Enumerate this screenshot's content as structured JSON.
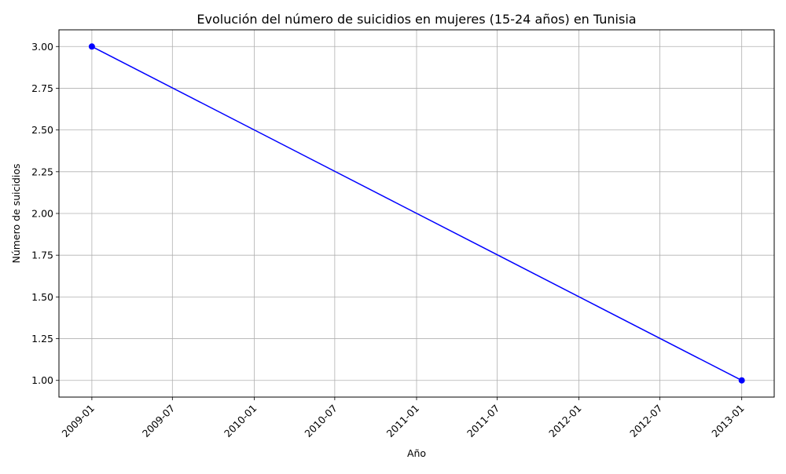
{
  "chart_data": {
    "type": "line",
    "title": "Evolución del número de suicidios en mujeres (15-24 años) en Tunisia",
    "xlabel": "Año",
    "ylabel": "Número de suicidios",
    "x_ticks": [
      "2009-01",
      "2009-07",
      "2010-01",
      "2010-07",
      "2011-01",
      "2011-07",
      "2012-01",
      "2012-07",
      "2013-01"
    ],
    "y_ticks": [
      "1.00",
      "1.25",
      "1.50",
      "1.75",
      "2.00",
      "2.25",
      "2.50",
      "2.75",
      "3.00"
    ],
    "xlim": [
      "2008-10-19",
      "2013-03-15"
    ],
    "ylim": [
      0.9,
      3.1
    ],
    "grid": true,
    "series": [
      {
        "x": [
          "2009-01-01",
          "2013-01-01"
        ],
        "y": [
          3,
          1
        ],
        "color": "#0000ff",
        "marker": "circle"
      }
    ]
  }
}
